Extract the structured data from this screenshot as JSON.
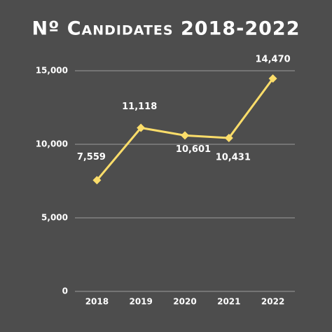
{
  "chart_data": {
    "type": "line",
    "title": "Nº Candidates 2018-2022",
    "categories": [
      "2018",
      "2019",
      "2020",
      "2021",
      "2022"
    ],
    "series": [
      {
        "name": "Candidates",
        "color": "#fbdd6a",
        "values": [
          7559,
          11118,
          10601,
          10431,
          14470
        ],
        "value_labels": [
          "7,559",
          "11,118",
          "10,601",
          "10,431",
          "14,470"
        ]
      }
    ],
    "ylim": [
      0,
      15000
    ],
    "yticks": [
      0,
      {
        "value": 5000,
        "label": "5,000"
      },
      {
        "value": 10000,
        "label": "10,000"
      },
      {
        "value": 15000,
        "label": "15,000"
      }
    ],
    "grid": true
  }
}
